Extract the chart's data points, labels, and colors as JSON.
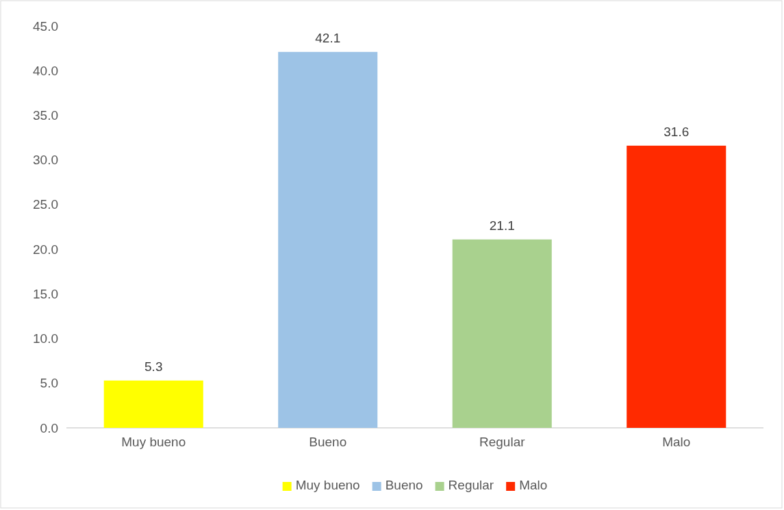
{
  "chart_data": {
    "type": "bar",
    "categories": [
      "Muy bueno",
      "Bueno",
      "Regular",
      "Malo"
    ],
    "series": [
      {
        "name": "Muy bueno",
        "color": "#ffff00",
        "values": [
          5.3,
          null,
          null,
          null
        ]
      },
      {
        "name": "Bueno",
        "color": "#9dc3e6",
        "values": [
          null,
          42.1,
          null,
          null
        ]
      },
      {
        "name": "Regular",
        "color": "#a9d18e",
        "values": [
          null,
          null,
          21.1,
          null
        ]
      },
      {
        "name": "Malo",
        "color": "#ff2a00",
        "values": [
          null,
          null,
          null,
          31.6
        ]
      }
    ],
    "stacked": true,
    "ylim": [
      0,
      45
    ],
    "yticks": [
      {
        "value": 0,
        "label": "0.0"
      },
      {
        "value": 5,
        "label": "5.0"
      },
      {
        "value": 10,
        "label": "10.0"
      },
      {
        "value": 15,
        "label": "15.0"
      },
      {
        "value": 20,
        "label": "20.0"
      },
      {
        "value": 25,
        "label": "25.0"
      },
      {
        "value": 30,
        "label": "30.0"
      },
      {
        "value": 35,
        "label": "35.0"
      },
      {
        "value": 40,
        "label": "40.0"
      },
      {
        "value": 45,
        "label": "45.0"
      }
    ],
    "data_labels": true,
    "legend": "bottom"
  }
}
